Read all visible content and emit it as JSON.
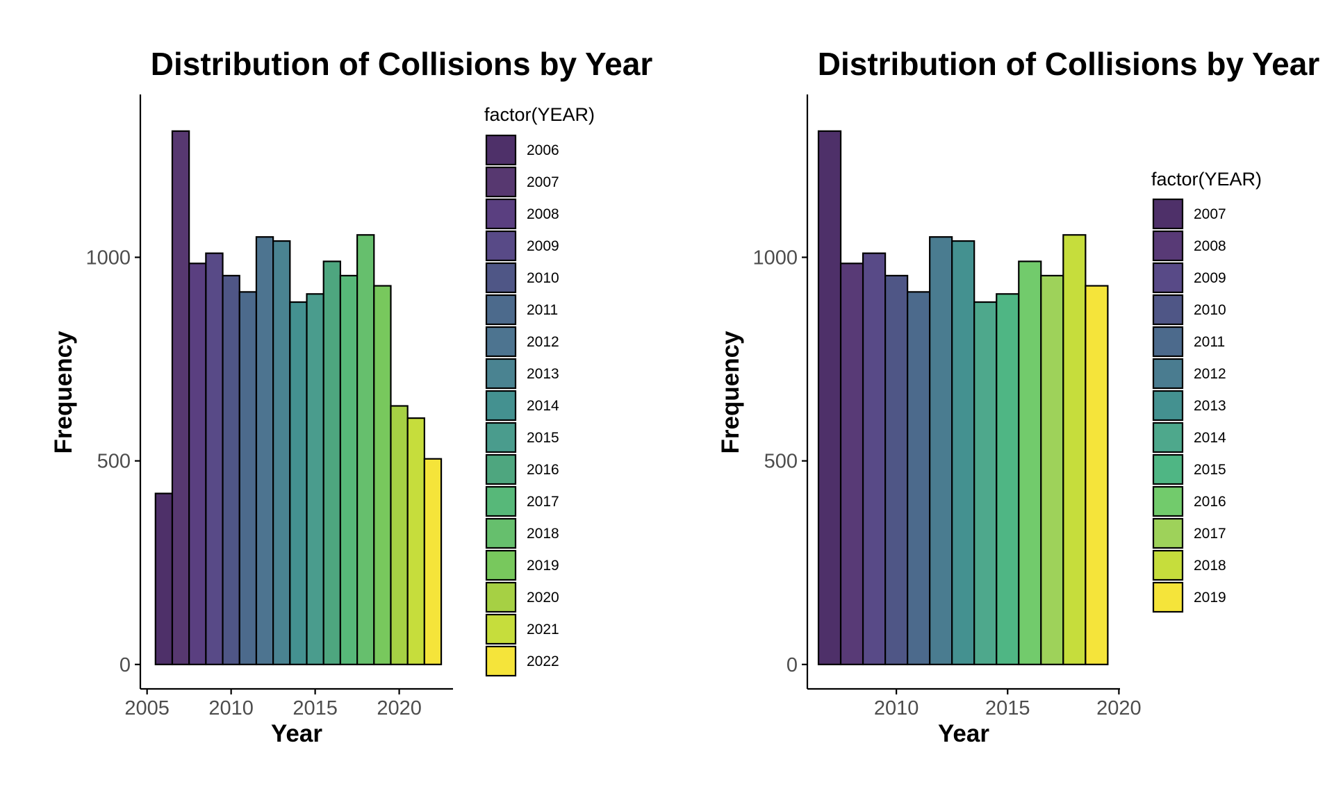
{
  "chart_data": [
    {
      "type": "bar",
      "title": "Distribution of Collisions by Year",
      "xlabel": "Year",
      "ylabel": "Frequency",
      "legend_title": "factor(YEAR)",
      "legend_position": "right-top",
      "grid": false,
      "ylim": [
        -60,
        1400
      ],
      "xlim": [
        2004.6,
        2023.2
      ],
      "x_ticks": [
        2005,
        2010,
        2015,
        2020
      ],
      "y_ticks": [
        0,
        500,
        1000
      ],
      "categories": [
        "2006",
        "2007",
        "2008",
        "2009",
        "2010",
        "2011",
        "2012",
        "2013",
        "2014",
        "2015",
        "2016",
        "2017",
        "2018",
        "2019",
        "2020",
        "2021",
        "2022"
      ],
      "x": [
        2006,
        2007,
        2008,
        2009,
        2010,
        2011,
        2012,
        2013,
        2014,
        2015,
        2016,
        2017,
        2018,
        2019,
        2020,
        2021,
        2022
      ],
      "values": [
        420,
        1310,
        985,
        1010,
        955,
        915,
        1050,
        1040,
        890,
        910,
        990,
        955,
        1055,
        930,
        635,
        605,
        505
      ],
      "colors": [
        "#4e3069",
        "#573870",
        "#5a3f80",
        "#584a87",
        "#4f5686",
        "#4c6a8c",
        "#4d7490",
        "#4a8391",
        "#449190",
        "#4a9c8d",
        "#4ea67f",
        "#57b879",
        "#66bf6d",
        "#78c85d",
        "#a6d044",
        "#c6dd3c",
        "#f5e43a"
      ]
    },
    {
      "type": "bar",
      "title": "Distribution of Collisions by Year",
      "xlabel": "Year",
      "ylabel": "Frequency",
      "legend_title": "factor(YEAR)",
      "legend_position": "right",
      "grid": false,
      "ylim": [
        -60,
        1400
      ],
      "xlim": [
        2006.0,
        2020.05
      ],
      "x_ticks": [
        2010,
        2015,
        2020
      ],
      "y_ticks": [
        0,
        500,
        1000
      ],
      "categories": [
        "2007",
        "2008",
        "2009",
        "2010",
        "2011",
        "2012",
        "2013",
        "2014",
        "2015",
        "2016",
        "2017",
        "2018",
        "2019"
      ],
      "x": [
        2007,
        2008,
        2009,
        2010,
        2011,
        2012,
        2013,
        2014,
        2015,
        2016,
        2017,
        2018,
        2019
      ],
      "values": [
        1310,
        985,
        1010,
        955,
        915,
        1050,
        1040,
        890,
        910,
        990,
        955,
        1055,
        930
      ],
      "colors": [
        "#4e3069",
        "#583a76",
        "#584a87",
        "#4f5686",
        "#4c6a8c",
        "#4a7c90",
        "#449190",
        "#4ea88c",
        "#4fb684",
        "#72cb6c",
        "#9ed25a",
        "#c6dd3c",
        "#f5e43a"
      ]
    }
  ]
}
